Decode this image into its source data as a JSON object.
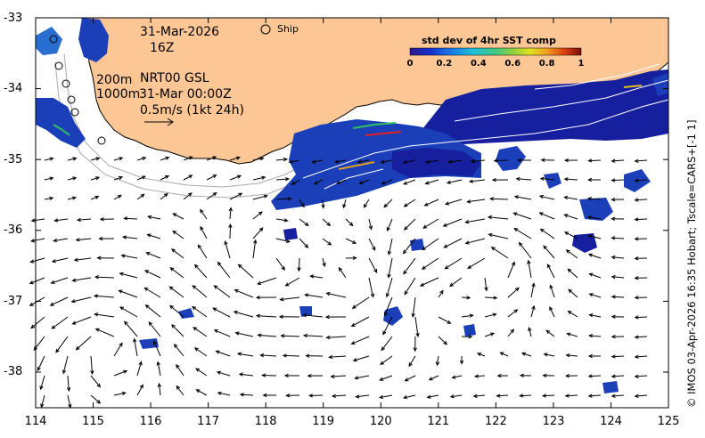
{
  "map": {
    "date_label": "31-Mar-2026",
    "hour_label": "16Z",
    "ship_label": "Ship",
    "contour_200": "200m",
    "contour_1000": "1000m",
    "product_label": "NRT00 GSL",
    "product_time": "31-Mar 00:00Z",
    "scale_label": "0.5m/s (1kt 24h)",
    "credit": "© IMOS 03-Apr-2026 16:35 Hobart; Tscale=CARS+[-1 1]",
    "colors": {
      "land": "#fcc795",
      "ocean": "#ffffff",
      "vector": "#000000"
    }
  },
  "colorbar": {
    "title": "std dev of 4hr SST comp",
    "ticks": [
      "0",
      "0.2",
      "0.4",
      "0.6",
      "0.8",
      "1"
    ],
    "range": [
      0,
      1
    ]
  },
  "axes": {
    "x_ticks": [
      "114",
      "115",
      "116",
      "117",
      "118",
      "119",
      "120",
      "121",
      "122",
      "123",
      "124",
      "125"
    ],
    "y_ticks": [
      "-33",
      "-34",
      "-35",
      "-36",
      "-37",
      "-38"
    ],
    "lon_range": [
      114,
      125
    ],
    "lat_range": [
      -38.5,
      -33
    ]
  }
}
